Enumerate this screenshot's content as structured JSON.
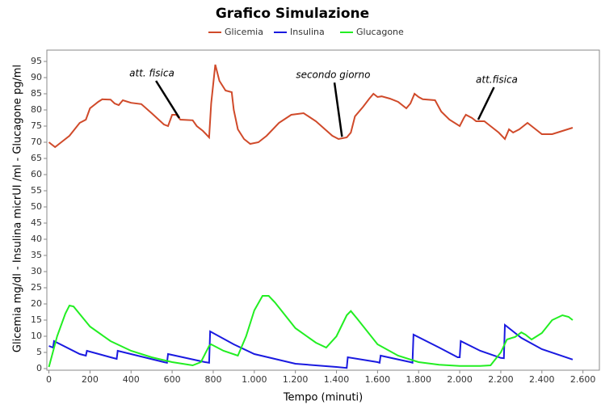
{
  "chart_data": {
    "type": "line",
    "title": "Grafico Simulazione",
    "xlabel": "Tempo (minuti)",
    "ylabel": "Glicemia mg/dl - Insulina micrUI /ml - Glucagone pg/ml",
    "xlim": [
      -10,
      2680
    ],
    "ylim": [
      -0.5,
      98.5
    ],
    "xticks": [
      0,
      200,
      400,
      600,
      800,
      {
        "value": 1000,
        "label": "1.000"
      },
      {
        "value": 1200,
        "label": "1.200"
      },
      {
        "value": 1400,
        "label": "1.400"
      },
      {
        "value": 1600,
        "label": "1.600"
      },
      {
        "value": 1800,
        "label": "1.800"
      },
      {
        "value": 2000,
        "label": "2.000"
      },
      {
        "value": 2200,
        "label": "2.200"
      },
      {
        "value": 2400,
        "label": "2.400"
      },
      {
        "value": 2600,
        "label": "2.600"
      }
    ],
    "yticks": [
      0,
      5,
      10,
      15,
      20,
      25,
      30,
      35,
      40,
      45,
      50,
      55,
      60,
      65,
      70,
      75,
      80,
      85,
      90,
      95
    ],
    "grid": false,
    "legend": "top",
    "series": [
      {
        "name": "Glicemia",
        "color": "#d04a2a",
        "x": [
          0,
          30,
          60,
          100,
          150,
          180,
          200,
          240,
          260,
          300,
          320,
          340,
          360,
          400,
          450,
          500,
          560,
          580,
          600,
          620,
          640,
          700,
          720,
          750,
          780,
          790,
          810,
          830,
          860,
          890,
          900,
          920,
          950,
          980,
          1020,
          1060,
          1120,
          1180,
          1240,
          1300,
          1380,
          1410,
          1450,
          1470,
          1490,
          1530,
          1560,
          1580,
          1600,
          1620,
          1660,
          1700,
          1740,
          1760,
          1780,
          1800,
          1820,
          1880,
          1910,
          1950,
          2000,
          2020,
          2030,
          2060,
          2080,
          2120,
          2150,
          2190,
          2220,
          2240,
          2260,
          2290,
          2330,
          2360,
          2400,
          2450,
          2500,
          2550
        ],
        "values": [
          70,
          68.5,
          70,
          72,
          76,
          77,
          80.5,
          82.5,
          83.3,
          83.2,
          82,
          81.5,
          83,
          82.2,
          81.8,
          79,
          75.5,
          75,
          78.5,
          78.5,
          77,
          76.8,
          75,
          73.5,
          71.5,
          82,
          94,
          89,
          86,
          85.5,
          80,
          74,
          71,
          69.5,
          70,
          72,
          76,
          78.5,
          79,
          76.5,
          72,
          71,
          71.5,
          73,
          78,
          81,
          83.5,
          85,
          84,
          84.2,
          83.5,
          82.5,
          80.5,
          82,
          85,
          84,
          83.3,
          83,
          79.5,
          77,
          75,
          77.5,
          78.5,
          77.5,
          76.5,
          76.5,
          75,
          73,
          71,
          74,
          73,
          74,
          76,
          74.5,
          72.5,
          72.5,
          73.5,
          74.5
        ]
      },
      {
        "name": "Insulina",
        "color": "#1a1ae0",
        "x": [
          0,
          20,
          25,
          150,
          180,
          185,
          300,
          330,
          335,
          560,
          575,
          580,
          760,
          780,
          785,
          900,
          1000,
          1200,
          1400,
          1450,
          1455,
          1600,
          1610,
          1615,
          1760,
          1770,
          1775,
          1900,
          1990,
          2000,
          2005,
          2100,
          2200,
          2215,
          2220,
          2300,
          2400,
          2550
        ],
        "values": [
          7,
          6.5,
          8.5,
          4.5,
          4,
          5.5,
          3.5,
          3,
          5.5,
          2,
          1.8,
          4.5,
          2,
          1.8,
          11.5,
          7.5,
          4.5,
          1.5,
          0.5,
          0.2,
          3.5,
          2,
          1.8,
          4,
          2,
          1.8,
          10.5,
          6.5,
          3.5,
          3.5,
          8.5,
          5.5,
          3.3,
          3.2,
          13.5,
          9.5,
          6,
          2.8
        ]
      },
      {
        "name": "Glucagone",
        "color": "#22ee22",
        "x": [
          0,
          40,
          80,
          100,
          120,
          200,
          300,
          400,
          500,
          600,
          700,
          740,
          780,
          790,
          850,
          920,
          960,
          1000,
          1040,
          1070,
          1100,
          1200,
          1300,
          1350,
          1400,
          1450,
          1470,
          1500,
          1600,
          1700,
          1800,
          1900,
          2000,
          2100,
          2150,
          2200,
          2230,
          2270,
          2300,
          2320,
          2350,
          2400,
          2450,
          2500,
          2530,
          2550
        ],
        "values": [
          0.5,
          10,
          17,
          19.5,
          19.2,
          13,
          8.5,
          5.5,
          3.5,
          2,
          1,
          2,
          7,
          7.5,
          5.5,
          4,
          10,
          18,
          22.5,
          22.5,
          20.5,
          12.5,
          8,
          6.5,
          10,
          16.5,
          17.8,
          15.5,
          7.5,
          4,
          2,
          1.2,
          0.8,
          0.8,
          1,
          5,
          9,
          9.8,
          11.2,
          10.5,
          9,
          11,
          15,
          16.5,
          16,
          15
        ]
      }
    ],
    "annotations": [
      {
        "text": "att. fisica",
        "x": 635,
        "y": 77.5
      },
      {
        "text": "secondo giorno",
        "x": 1427,
        "y": 71.7
      },
      {
        "text": "att.fisica",
        "x": 2090,
        "y": 77
      }
    ]
  }
}
